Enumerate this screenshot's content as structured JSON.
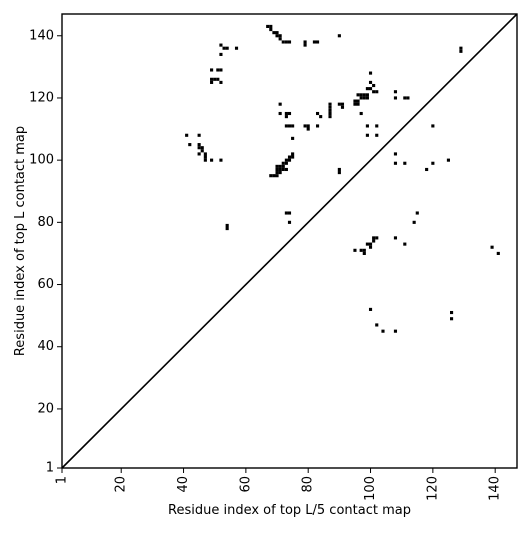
{
  "chart_data": {
    "type": "scatter",
    "title": "",
    "xlabel": "Residue index of top L/5 contact map",
    "ylabel": "Residue index of top L contact map",
    "xlim": [
      1,
      147
    ],
    "ylim": [
      1,
      147
    ],
    "x_ticks": [
      1,
      20,
      40,
      60,
      80,
      100,
      120,
      140
    ],
    "y_ticks": [
      1,
      20,
      40,
      60,
      80,
      100,
      120,
      140
    ],
    "x_tick_rotation_deg": -90,
    "grid": false,
    "legend": "none",
    "diagonal_line": true,
    "colors": {
      "mark": "#000000",
      "background": "#ffffff"
    },
    "points": [
      [
        67,
        143
      ],
      [
        68,
        143
      ],
      [
        68,
        142
      ],
      [
        69,
        141
      ],
      [
        70,
        141
      ],
      [
        70,
        140
      ],
      [
        71,
        140
      ],
      [
        71,
        139
      ],
      [
        72,
        138
      ],
      [
        73,
        138
      ],
      [
        74,
        138
      ],
      [
        79,
        138
      ],
      [
        79,
        137
      ],
      [
        82,
        138
      ],
      [
        83,
        138
      ],
      [
        90,
        140
      ],
      [
        52,
        137
      ],
      [
        53,
        136
      ],
      [
        54,
        136
      ],
      [
        57,
        136
      ],
      [
        52,
        134
      ],
      [
        129,
        136
      ],
      [
        129,
        135
      ],
      [
        49,
        129
      ],
      [
        51,
        129
      ],
      [
        52,
        129
      ],
      [
        49,
        126
      ],
      [
        50,
        126
      ],
      [
        51,
        126
      ],
      [
        49,
        125
      ],
      [
        52,
        125
      ],
      [
        100,
        128
      ],
      [
        100,
        125
      ],
      [
        101,
        124
      ],
      [
        99,
        123
      ],
      [
        100,
        123
      ],
      [
        101,
        122
      ],
      [
        102,
        122
      ],
      [
        98,
        121
      ],
      [
        99,
        121
      ],
      [
        97,
        121
      ],
      [
        96,
        121
      ],
      [
        97,
        120
      ],
      [
        98,
        120
      ],
      [
        99,
        120
      ],
      [
        96,
        119
      ],
      [
        95,
        119
      ],
      [
        96,
        118
      ],
      [
        95,
        118
      ],
      [
        108,
        122
      ],
      [
        108,
        120
      ],
      [
        111,
        120
      ],
      [
        112,
        120
      ],
      [
        71,
        118
      ],
      [
        87,
        118
      ],
      [
        90,
        118
      ],
      [
        91,
        118
      ],
      [
        87,
        117
      ],
      [
        91,
        117
      ],
      [
        87,
        116
      ],
      [
        87,
        115
      ],
      [
        87,
        114
      ],
      [
        83,
        115
      ],
      [
        84,
        114
      ],
      [
        73,
        115
      ],
      [
        74,
        115
      ],
      [
        71,
        115
      ],
      [
        73,
        114
      ],
      [
        97,
        115
      ],
      [
        73,
        111
      ],
      [
        74,
        111
      ],
      [
        75,
        111
      ],
      [
        79,
        111
      ],
      [
        80,
        111
      ],
      [
        80,
        110
      ],
      [
        83,
        111
      ],
      [
        99,
        111
      ],
      [
        102,
        111
      ],
      [
        120,
        111
      ],
      [
        99,
        108
      ],
      [
        102,
        108
      ],
      [
        41,
        108
      ],
      [
        45,
        108
      ],
      [
        75,
        107
      ],
      [
        42,
        105
      ],
      [
        45,
        105
      ],
      [
        45,
        104
      ],
      [
        46,
        104
      ],
      [
        46,
        103
      ],
      [
        45,
        102
      ],
      [
        47,
        102
      ],
      [
        47,
        101
      ],
      [
        47,
        100
      ],
      [
        49,
        100
      ],
      [
        52,
        100
      ],
      [
        108,
        102
      ],
      [
        108,
        99
      ],
      [
        111,
        99
      ],
      [
        120,
        99
      ],
      [
        125,
        100
      ],
      [
        118,
        97
      ],
      [
        75,
        102
      ],
      [
        75,
        101
      ],
      [
        74,
        101
      ],
      [
        73,
        100
      ],
      [
        74,
        100
      ],
      [
        73,
        99
      ],
      [
        72,
        99
      ],
      [
        72,
        98
      ],
      [
        71,
        98
      ],
      [
        70,
        98
      ],
      [
        73,
        97
      ],
      [
        72,
        97
      ],
      [
        71,
        97
      ],
      [
        70,
        97
      ],
      [
        71,
        96
      ],
      [
        70,
        96
      ],
      [
        70,
        95
      ],
      [
        69,
        95
      ],
      [
        68,
        95
      ],
      [
        90,
        97
      ],
      [
        90,
        96
      ],
      [
        115,
        83
      ],
      [
        114,
        80
      ],
      [
        73,
        83
      ],
      [
        74,
        83
      ],
      [
        74,
        80
      ],
      [
        54,
        79
      ],
      [
        54,
        78
      ],
      [
        102,
        75
      ],
      [
        101,
        75
      ],
      [
        108,
        75
      ],
      [
        101,
        74
      ],
      [
        99,
        73
      ],
      [
        100,
        73
      ],
      [
        100,
        72
      ],
      [
        111,
        73
      ],
      [
        95,
        71
      ],
      [
        97,
        71
      ],
      [
        98,
        71
      ],
      [
        98,
        70
      ],
      [
        139,
        72
      ],
      [
        141,
        70
      ],
      [
        100,
        52
      ],
      [
        126,
        51
      ],
      [
        126,
        49
      ],
      [
        102,
        47
      ],
      [
        104,
        45
      ],
      [
        108,
        45
      ]
    ]
  }
}
